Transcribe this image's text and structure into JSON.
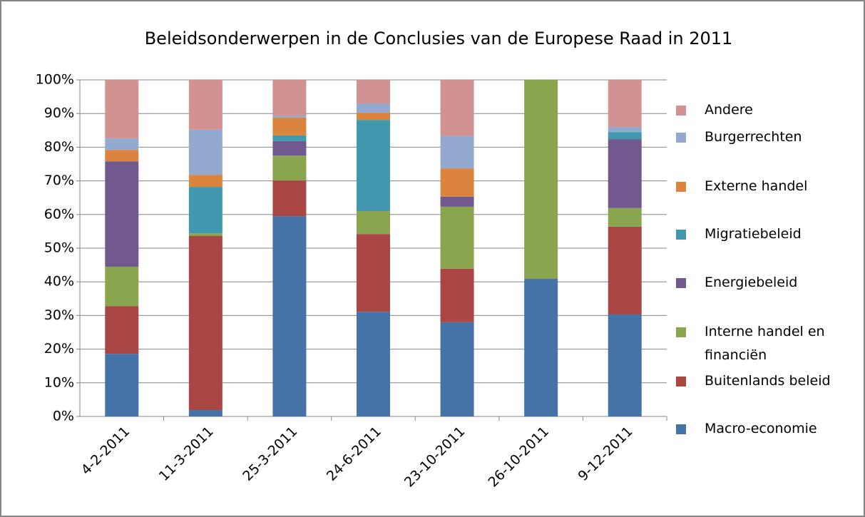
{
  "chart_data": {
    "type": "stacked_bar",
    "title": "Beleidsonderwerpen in de Conclusies van de Europese Raad in 2011",
    "categories": [
      "4-2-2011",
      "11-3-2011",
      "25-3-2011",
      "24-6-2011",
      "23-10-2011",
      "26-10-2011",
      "9-12-2011"
    ],
    "series": [
      {
        "name": "Macro-economie",
        "color": "#4572a7",
        "values": [
          18.6,
          1.9,
          59.5,
          31.1,
          28.0,
          40.9,
          30.3
        ]
      },
      {
        "name": "Buitenlands beleid",
        "color": "#aa4643",
        "values": [
          14.2,
          51.7,
          10.6,
          23.1,
          15.9,
          0,
          26.1
        ]
      },
      {
        "name": "Interne handel en financiën",
        "color": "#89a54e",
        "values": [
          11.7,
          0.8,
          7.4,
          6.8,
          18.4,
          59.1,
          5.5
        ]
      },
      {
        "name": "Energiebeleid",
        "color": "#71588f",
        "values": [
          31.3,
          0,
          4.3,
          0,
          3.0,
          0,
          20.5
        ]
      },
      {
        "name": "Migratiebeleid",
        "color": "#4198af",
        "values": [
          0,
          13.8,
          1.7,
          27.1,
          0,
          0,
          2.1
        ]
      },
      {
        "name": "Externe handel",
        "color": "#db843d",
        "values": [
          3.4,
          3.6,
          5.3,
          2.2,
          8.4,
          0,
          0
        ]
      },
      {
        "name": "Burgerrechten",
        "color": "#93a9cf",
        "values": [
          3.4,
          13.4,
          0.6,
          2.7,
          9.6,
          0,
          1.5
        ]
      },
      {
        "name": "Andere",
        "color": "#d19392",
        "values": [
          17.4,
          14.8,
          10.6,
          7.0,
          16.7,
          0,
          14.0
        ]
      }
    ],
    "ylim": [
      0,
      100
    ],
    "yticks": [
      {
        "value": 0,
        "label": "0%"
      },
      {
        "value": 10,
        "label": "10%"
      },
      {
        "value": 20,
        "label": "20%"
      },
      {
        "value": 30,
        "label": "30%"
      },
      {
        "value": 40,
        "label": "40%"
      },
      {
        "value": 50,
        "label": "50%"
      },
      {
        "value": 60,
        "label": "60%"
      },
      {
        "value": 70,
        "label": "70%"
      },
      {
        "value": 80,
        "label": "80%"
      },
      {
        "value": 90,
        "label": "90%"
      },
      {
        "value": 100,
        "label": "100%"
      }
    ],
    "grid": true,
    "legend": "right"
  }
}
